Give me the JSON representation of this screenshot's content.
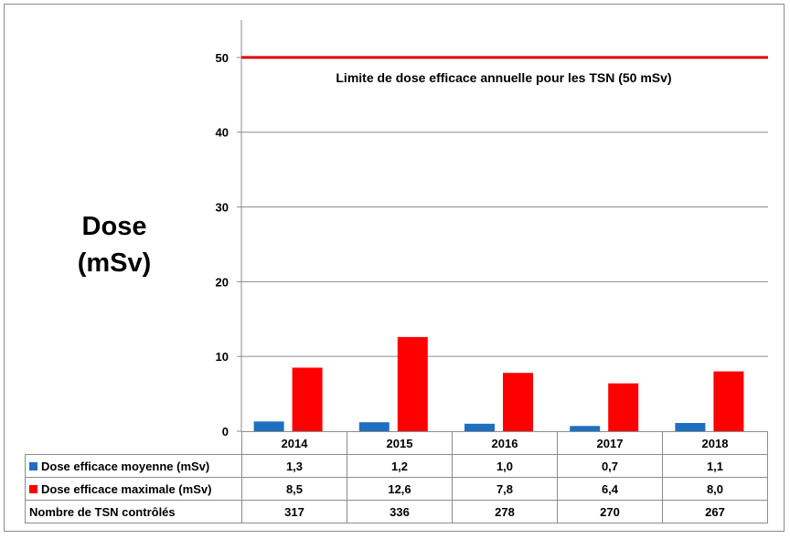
{
  "chart_data": {
    "type": "bar",
    "ylabel_line1": "Dose",
    "ylabel_line2": "(mSv)",
    "ylim": [
      0,
      55
    ],
    "yticks": [
      "0",
      "10",
      "20",
      "30",
      "40",
      "50"
    ],
    "grid": true,
    "categories": [
      "2014",
      "2015",
      "2016",
      "2017",
      "2018"
    ],
    "series": [
      {
        "name": "Dose efficace moyenne (mSv)",
        "color": "#1f6fc0",
        "values": [
          1.3,
          1.2,
          1.0,
          0.7,
          1.1
        ],
        "labels": [
          "1,3",
          "1,2",
          "1,0",
          "0,7",
          "1,1"
        ]
      },
      {
        "name": "Dose efficace maximale (mSv)",
        "color": "#ff0000",
        "values": [
          8.5,
          12.6,
          7.8,
          6.4,
          8.0
        ],
        "labels": [
          "8,5",
          "12,6",
          "7,8",
          "6,4",
          "8,0"
        ]
      }
    ],
    "count_row": {
      "name": "Nombre de TSN contrôlés",
      "values": [
        "317",
        "336",
        "278",
        "270",
        "267"
      ]
    },
    "reference_line": {
      "value": 50,
      "color": "#e00000",
      "label": "Limite de dose efficace annuelle pour les TSN  (50 mSv)"
    }
  }
}
